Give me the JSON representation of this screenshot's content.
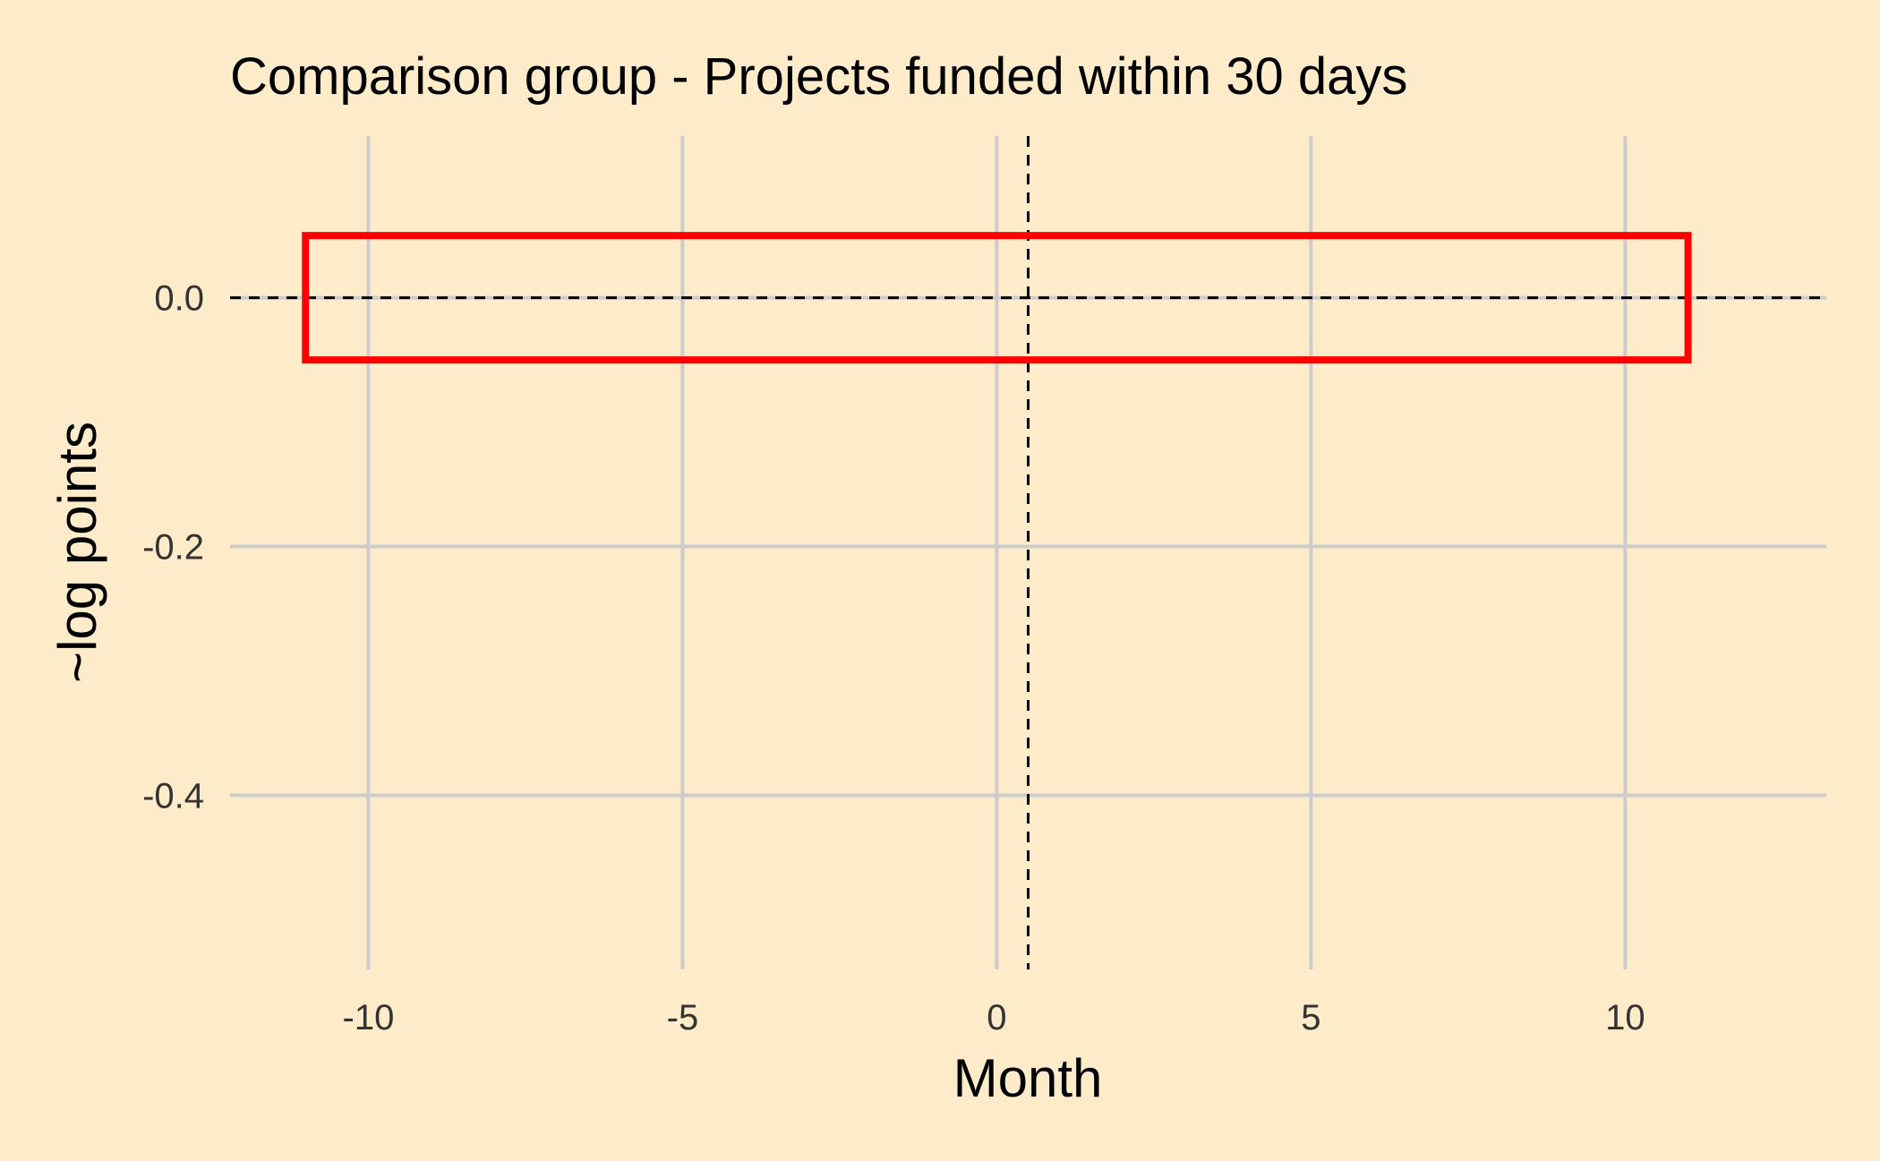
{
  "chart_data": {
    "type": "line",
    "title": "Comparison group - Projects funded within 30 days",
    "xlabel": "Month",
    "ylabel": "~log points",
    "xlim": [
      -12.2,
      13.2
    ],
    "ylim": [
      -0.54,
      0.13
    ],
    "x_ticks": [
      -10,
      -5,
      0,
      5,
      10
    ],
    "y_ticks": [
      0.0,
      -0.2,
      -0.4
    ],
    "x_tick_labels": [
      "-10",
      "-5",
      "0",
      "5",
      "10"
    ],
    "y_tick_labels": [
      "0.0",
      "-0.2",
      "-0.4"
    ],
    "grid": true,
    "reference_lines": {
      "horizontal_y": 0.0,
      "vertical_x": 0.5,
      "style": "dashed"
    },
    "highlight_box": {
      "x_range": [
        -11,
        11
      ],
      "y_range": [
        -0.05,
        0.05
      ],
      "color": "#ff0000"
    },
    "series": []
  },
  "colors": {
    "background": "#fdebc9",
    "grid": "#cccccc",
    "reference_line": "#000000",
    "highlight": "#ff0000",
    "tick_text": "#333333"
  }
}
